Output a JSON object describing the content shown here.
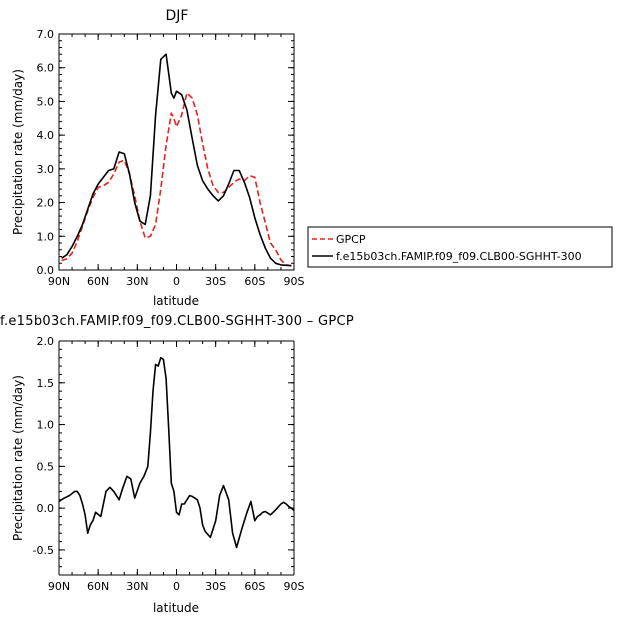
{
  "chart_data": [
    {
      "type": "line",
      "title": "DJF",
      "xlabel": "latitude",
      "ylabel": "Precipitation rate (mm/day)",
      "xlim": [
        90,
        -90
      ],
      "ylim": [
        0,
        7
      ],
      "x_ticks": [
        90,
        60,
        30,
        0,
        -30,
        -60,
        -90
      ],
      "x_tick_labels": [
        "90N",
        "60N",
        "30N",
        "0",
        "30S",
        "60S",
        "90S"
      ],
      "y_ticks": [
        0,
        1,
        2,
        3,
        4,
        5,
        6,
        7
      ],
      "y_tick_labels": [
        "0.0",
        "1.0",
        "2.0",
        "3.0",
        "4.0",
        "5.0",
        "6.0",
        "7.0"
      ],
      "grid": false,
      "legend_placement": "right",
      "series": [
        {
          "name": "GPCP",
          "color": "#e8201c",
          "dash": "dashed",
          "x": [
            88,
            84,
            80,
            76,
            72,
            68,
            64,
            60,
            56,
            52,
            48,
            44,
            40,
            36,
            32,
            28,
            24,
            20,
            16,
            12,
            8,
            4,
            2,
            0,
            -4,
            -8,
            -12,
            -16,
            -20,
            -24,
            -28,
            -32,
            -36,
            -40,
            -44,
            -48,
            -52,
            -56,
            -60,
            -64,
            -68,
            -72,
            -76,
            -80,
            -84,
            -88
          ],
          "y": [
            0.28,
            0.33,
            0.5,
            0.85,
            1.3,
            1.75,
            2.15,
            2.45,
            2.5,
            2.6,
            2.85,
            3.2,
            3.25,
            2.85,
            2.2,
            1.45,
            0.95,
            1.0,
            1.35,
            2.4,
            3.7,
            4.65,
            4.5,
            4.25,
            4.6,
            5.25,
            5.1,
            4.6,
            3.75,
            3.0,
            2.5,
            2.3,
            2.3,
            2.45,
            2.6,
            2.7,
            2.65,
            2.8,
            2.75,
            2.0,
            1.4,
            0.8,
            0.6,
            0.3,
            0.15,
            0.12
          ]
        },
        {
          "name": "f.e15b03ch.FAMIP.f09_f09.CLB00-SGHHT-300",
          "color": "#000000",
          "dash": "solid",
          "x": [
            88,
            84,
            80,
            76,
            72,
            68,
            64,
            60,
            56,
            52,
            48,
            44,
            40,
            36,
            32,
            28,
            24,
            20,
            16,
            12,
            8,
            4,
            2,
            0,
            -4,
            -8,
            -12,
            -16,
            -20,
            -24,
            -28,
            -32,
            -36,
            -40,
            -44,
            -48,
            -52,
            -56,
            -60,
            -64,
            -68,
            -72,
            -76,
            -80,
            -84,
            -88
          ],
          "y": [
            0.35,
            0.45,
            0.7,
            1.0,
            1.35,
            1.8,
            2.25,
            2.55,
            2.75,
            2.95,
            3.0,
            3.5,
            3.45,
            2.85,
            2.0,
            1.45,
            1.35,
            2.2,
            4.6,
            6.25,
            6.4,
            5.25,
            5.1,
            5.3,
            5.2,
            4.75,
            3.9,
            3.1,
            2.65,
            2.4,
            2.2,
            2.05,
            2.2,
            2.55,
            2.95,
            2.95,
            2.6,
            2.15,
            1.55,
            1.05,
            0.65,
            0.35,
            0.2,
            0.15,
            0.14,
            0.13
          ]
        }
      ]
    },
    {
      "type": "line",
      "title": "f.e15b03ch.FAMIP.f09_f09.CLB00-SGHHT-300 – GPCP",
      "xlabel": "latitude",
      "ylabel": "Precipitation rate (mm/day)",
      "xlim": [
        90,
        -90
      ],
      "ylim": [
        -0.8,
        2.0
      ],
      "x_ticks": [
        90,
        60,
        30,
        0,
        -30,
        -60,
        -90
      ],
      "x_tick_labels": [
        "90N",
        "60N",
        "30N",
        "0",
        "30S",
        "60S",
        "90S"
      ],
      "y_ticks": [
        -0.5,
        0,
        0.5,
        1.0,
        1.5,
        2.0
      ],
      "y_tick_labels": [
        "-0.5",
        "0.0",
        "0.5",
        "1.0",
        "1.5",
        "2.0"
      ],
      "grid": false,
      "series": [
        {
          "name": "",
          "color": "#000000",
          "dash": "solid",
          "x": [
            90,
            86,
            82,
            78,
            76,
            74,
            72,
            70,
            68,
            66,
            64,
            62,
            58,
            54,
            51,
            48,
            44,
            41,
            38,
            35,
            32,
            28,
            25,
            22,
            20,
            18,
            16,
            14,
            12,
            10,
            8,
            6,
            4,
            2,
            0,
            -2,
            -4,
            -6,
            -8,
            -10,
            -12,
            -14,
            -16,
            -18,
            -20,
            -22,
            -26,
            -30,
            -33,
            -36,
            -40,
            -43,
            -46,
            -50,
            -54,
            -57,
            -60,
            -62,
            -64,
            -66,
            -68,
            -70,
            -72,
            -76,
            -80,
            -82,
            -84,
            -86,
            -88,
            -90
          ],
          "y": [
            0.08,
            0.12,
            0.15,
            0.2,
            0.2,
            0.15,
            0.05,
            -0.08,
            -0.3,
            -0.2,
            -0.15,
            -0.05,
            -0.1,
            0.2,
            0.25,
            0.2,
            0.1,
            0.25,
            0.38,
            0.35,
            0.12,
            0.3,
            0.38,
            0.5,
            0.9,
            1.4,
            1.72,
            1.7,
            1.8,
            1.78,
            1.55,
            0.95,
            0.3,
            0.2,
            -0.05,
            -0.08,
            0.05,
            0.05,
            0.1,
            0.15,
            0.14,
            0.12,
            0.1,
            0.0,
            -0.2,
            -0.28,
            -0.35,
            -0.15,
            0.15,
            0.27,
            0.1,
            -0.3,
            -0.47,
            -0.25,
            -0.05,
            0.08,
            -0.15,
            -0.1,
            -0.08,
            -0.05,
            -0.04,
            -0.06,
            -0.08,
            -0.02,
            0.05,
            0.07,
            0.05,
            0.02,
            0.0,
            -0.03
          ]
        }
      ]
    }
  ]
}
